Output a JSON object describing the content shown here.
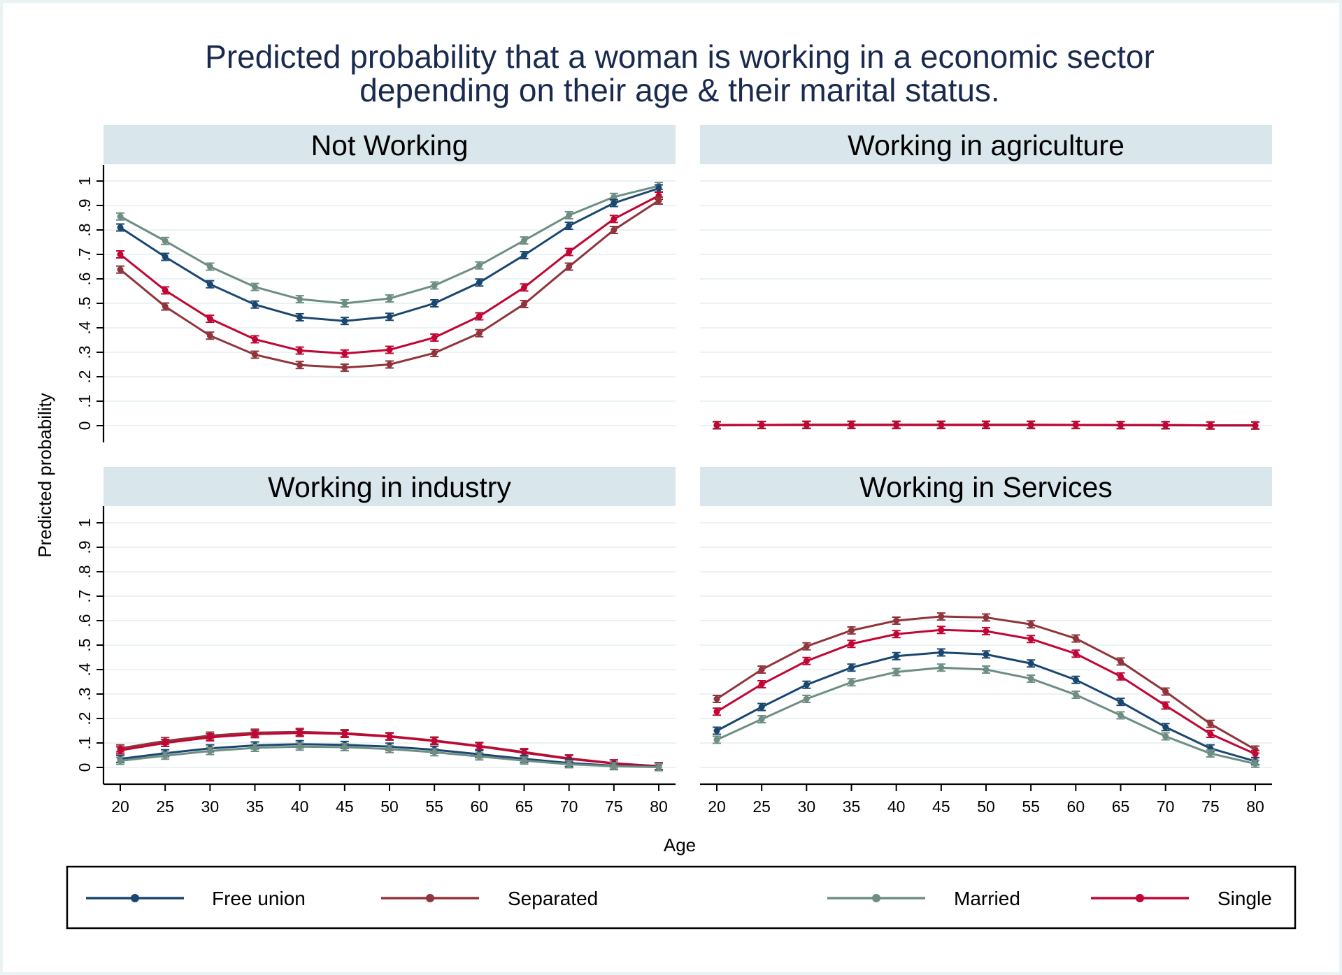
{
  "title_lines": [
    "Predicted probability that a woman is working in a economic sector",
    "depending on their age & their marital status."
  ],
  "colors": {
    "Free union": "#1a476f",
    "Separated": "#90353b",
    "Married": "#6e8e84",
    "Single": "#c10534",
    "strip": "#d9e6ec",
    "outer_background": "#eaf2f3",
    "title": "#1a2a4f"
  },
  "legend": {
    "items": [
      "Free union",
      "Separated",
      "Married",
      "Single"
    ]
  },
  "chart_data": {
    "type": "line",
    "xlabel": "Age",
    "ylabel": "Predicted probability",
    "x": [
      20,
      25,
      30,
      35,
      40,
      45,
      50,
      55,
      60,
      65,
      70,
      75,
      80
    ],
    "x_tick_labels": [
      "20",
      "25",
      "30",
      "35",
      "40",
      "45",
      "50",
      "55",
      "60",
      "65",
      "70",
      "75",
      "80"
    ],
    "y_tick_labels": [
      "0",
      ".1",
      ".2",
      ".3",
      ".4",
      ".5",
      ".6",
      ".7",
      ".8",
      ".9",
      "1"
    ],
    "ylim": [
      0,
      1
    ],
    "xlim": [
      20,
      80
    ],
    "grid": true,
    "legend_placement": "bottom",
    "error_bars": true,
    "panels": [
      {
        "title": "Not Working",
        "series": [
          {
            "name": "Married",
            "values": [
              0.855,
              0.755,
              0.65,
              0.567,
              0.517,
              0.5,
              0.52,
              0.573,
              0.655,
              0.757,
              0.86,
              0.935,
              0.98
            ]
          },
          {
            "name": "Free union",
            "values": [
              0.81,
              0.69,
              0.578,
              0.495,
              0.443,
              0.428,
              0.445,
              0.5,
              0.585,
              0.697,
              0.817,
              0.91,
              0.97
            ]
          },
          {
            "name": "Single",
            "values": [
              0.7,
              0.553,
              0.437,
              0.353,
              0.307,
              0.295,
              0.31,
              0.36,
              0.447,
              0.565,
              0.71,
              0.845,
              0.94
            ]
          },
          {
            "name": "Separated",
            "values": [
              0.638,
              0.487,
              0.368,
              0.29,
              0.248,
              0.237,
              0.25,
              0.297,
              0.378,
              0.497,
              0.65,
              0.8,
              0.92
            ]
          }
        ]
      },
      {
        "title": "Working in agriculture",
        "series": [
          {
            "name": "Free union",
            "values": [
              0.002,
              0.003,
              0.003,
              0.003,
              0.003,
              0.003,
              0.003,
              0.003,
              0.003,
              0.002,
              0.002,
              0.001,
              0.001
            ]
          },
          {
            "name": "Separated",
            "values": [
              0.002,
              0.003,
              0.004,
              0.004,
              0.004,
              0.004,
              0.004,
              0.004,
              0.003,
              0.003,
              0.002,
              0.001,
              0.001
            ]
          },
          {
            "name": "Married",
            "values": [
              0.001,
              0.002,
              0.002,
              0.002,
              0.002,
              0.002,
              0.002,
              0.002,
              0.002,
              0.002,
              0.001,
              0.001,
              0.0
            ]
          },
          {
            "name": "Single",
            "values": [
              0.002,
              0.003,
              0.003,
              0.003,
              0.003,
              0.003,
              0.003,
              0.003,
              0.003,
              0.002,
              0.002,
              0.001,
              0.001
            ]
          }
        ]
      },
      {
        "title": "Working in industry",
        "series": [
          {
            "name": "Separated",
            "values": [
              0.078,
              0.108,
              0.13,
              0.142,
              0.145,
              0.14,
              0.128,
              0.11,
              0.088,
              0.063,
              0.037,
              0.017,
              0.005
            ]
          },
          {
            "name": "Single",
            "values": [
              0.07,
              0.1,
              0.123,
              0.136,
              0.141,
              0.137,
              0.126,
              0.108,
              0.086,
              0.06,
              0.035,
              0.016,
              0.005
            ]
          },
          {
            "name": "Free union",
            "values": [
              0.035,
              0.058,
              0.078,
              0.09,
              0.095,
              0.092,
              0.085,
              0.072,
              0.054,
              0.035,
              0.018,
              0.007,
              0.002
            ]
          },
          {
            "name": "Married",
            "values": [
              0.027,
              0.048,
              0.067,
              0.08,
              0.085,
              0.083,
              0.075,
              0.062,
              0.045,
              0.028,
              0.013,
              0.005,
              0.001
            ]
          }
        ]
      },
      {
        "title": "Working in Services",
        "series": [
          {
            "name": "Separated",
            "values": [
              0.28,
              0.4,
              0.495,
              0.56,
              0.6,
              0.617,
              0.613,
              0.585,
              0.527,
              0.433,
              0.31,
              0.178,
              0.073
            ]
          },
          {
            "name": "Single",
            "values": [
              0.228,
              0.34,
              0.435,
              0.505,
              0.545,
              0.562,
              0.557,
              0.525,
              0.465,
              0.372,
              0.253,
              0.137,
              0.055
            ]
          },
          {
            "name": "Free union",
            "values": [
              0.15,
              0.247,
              0.338,
              0.408,
              0.455,
              0.47,
              0.462,
              0.425,
              0.358,
              0.268,
              0.165,
              0.078,
              0.025
            ]
          },
          {
            "name": "Married",
            "values": [
              0.113,
              0.197,
              0.28,
              0.348,
              0.39,
              0.408,
              0.4,
              0.363,
              0.297,
              0.213,
              0.127,
              0.057,
              0.015
            ]
          }
        ]
      }
    ]
  }
}
